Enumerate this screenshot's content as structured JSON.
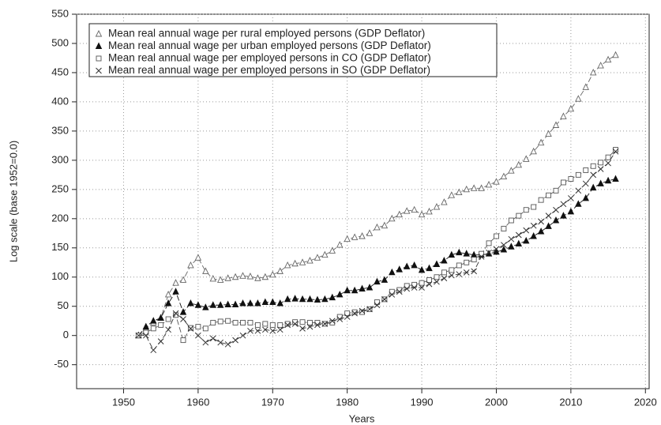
{
  "chart_data": {
    "type": "line",
    "xlabel": "Years",
    "ylabel": "Log scale (base 1952=0.0)",
    "x": [
      1952,
      1953,
      1954,
      1955,
      1956,
      1957,
      1958,
      1959,
      1960,
      1961,
      1962,
      1963,
      1964,
      1965,
      1966,
      1967,
      1968,
      1969,
      1970,
      1971,
      1972,
      1973,
      1974,
      1975,
      1976,
      1977,
      1978,
      1979,
      1980,
      1981,
      1982,
      1983,
      1984,
      1985,
      1986,
      1987,
      1988,
      1989,
      1990,
      1991,
      1992,
      1993,
      1994,
      1995,
      1996,
      1997,
      1998,
      1999,
      2000,
      2001,
      2002,
      2003,
      2004,
      2005,
      2006,
      2007,
      2008,
      2009,
      2010,
      2011,
      2012,
      2013,
      2014,
      2015,
      2016
    ],
    "series": [
      {
        "name": "Mean real annual wage per rural employed persons (GDP Deflator)",
        "color": "#666666",
        "marker": "triangle-open",
        "values": [
          0,
          12,
          22,
          30,
          70,
          90,
          95,
          120,
          133,
          110,
          97,
          95,
          98,
          100,
          102,
          101,
          98,
          100,
          104,
          110,
          120,
          123,
          125,
          128,
          133,
          138,
          145,
          155,
          165,
          168,
          170,
          175,
          185,
          188,
          200,
          207,
          213,
          215,
          207,
          212,
          220,
          228,
          240,
          245,
          250,
          252,
          252,
          258,
          263,
          272,
          282,
          292,
          302,
          315,
          330,
          345,
          360,
          375,
          388,
          405,
          425,
          450,
          462,
          472,
          480
        ]
      },
      {
        "name": "Mean real annual wage per urban employed persons (GDP Deflator)",
        "color": "#111111",
        "marker": "triangle",
        "values": [
          0,
          15,
          25,
          30,
          55,
          75,
          40,
          55,
          52,
          48,
          52,
          52,
          53,
          53,
          55,
          55,
          55,
          57,
          57,
          55,
          62,
          63,
          62,
          62,
          61,
          62,
          65,
          70,
          77,
          77,
          80,
          82,
          92,
          95,
          108,
          113,
          118,
          120,
          112,
          115,
          122,
          128,
          138,
          142,
          140,
          138,
          138,
          140,
          143,
          147,
          152,
          157,
          162,
          170,
          178,
          187,
          197,
          205,
          212,
          225,
          235,
          253,
          260,
          265,
          268
        ]
      },
      {
        "name": "Mean real annual wage per employed persons in CO (GDP Deflator)",
        "color": "#555555",
        "marker": "square-open",
        "values": [
          0,
          5,
          12,
          18,
          28,
          35,
          -8,
          13,
          15,
          12,
          22,
          24,
          25,
          22,
          22,
          22,
          18,
          20,
          18,
          18,
          20,
          23,
          23,
          22,
          22,
          20,
          22,
          32,
          38,
          40,
          40,
          45,
          57,
          62,
          75,
          78,
          85,
          87,
          90,
          95,
          100,
          108,
          112,
          120,
          125,
          130,
          140,
          158,
          170,
          183,
          197,
          205,
          215,
          220,
          232,
          240,
          248,
          262,
          268,
          275,
          283,
          290,
          296,
          305,
          318
        ]
      },
      {
        "name": "Mean real annual wage per employed persons in SO (GDP Deflator)",
        "color": "#333333",
        "marker": "x",
        "values": [
          0,
          0,
          -25,
          -10,
          10,
          38,
          28,
          12,
          0,
          -12,
          -5,
          -12,
          -15,
          -8,
          0,
          8,
          8,
          10,
          8,
          10,
          18,
          20,
          12,
          15,
          18,
          20,
          25,
          28,
          32,
          38,
          42,
          45,
          52,
          62,
          70,
          75,
          80,
          82,
          82,
          88,
          92,
          98,
          103,
          105,
          108,
          110,
          135,
          142,
          148,
          155,
          165,
          172,
          180,
          188,
          195,
          205,
          215,
          225,
          235,
          248,
          260,
          275,
          285,
          295,
          315
        ]
      }
    ],
    "xlim": [
      1943.7,
      2020.5
    ],
    "xticks": [
      1950,
      1960,
      1970,
      1980,
      1990,
      2000,
      2010,
      2020
    ],
    "ylim": [
      -91,
      550
    ],
    "yticks": [
      -50,
      0,
      50,
      100,
      150,
      200,
      250,
      300,
      350,
      400,
      450,
      500,
      550
    ],
    "grid": true,
    "legend": "upper left"
  }
}
